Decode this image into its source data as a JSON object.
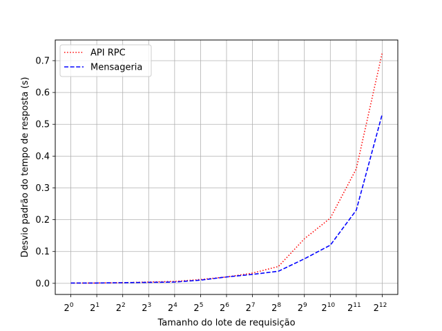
{
  "chart_data": {
    "type": "line",
    "xlabel": "Tamanho do lote de requisição",
    "ylabel": "Desvio padrão do tempo de resposta (s)",
    "x_exponents": [
      0,
      1,
      2,
      3,
      4,
      5,
      6,
      7,
      8,
      9,
      10,
      11,
      12
    ],
    "x_tick_base": "2",
    "y_ticks": [
      "0.0",
      "0.1",
      "0.2",
      "0.3",
      "0.4",
      "0.5",
      "0.6",
      "0.7"
    ],
    "ylim": [
      -0.035,
      0.765
    ],
    "grid": true,
    "legend_position": "upper left",
    "series": [
      {
        "name": "API RPC",
        "color": "#ff0000",
        "style": "dotted",
        "values": [
          0.001,
          0.001,
          0.002,
          0.004,
          0.006,
          0.012,
          0.02,
          0.032,
          0.053,
          0.14,
          0.205,
          0.36,
          0.725
        ]
      },
      {
        "name": "Mensageria",
        "color": "#0000ff",
        "style": "dashed",
        "values": [
          0.001,
          0.001,
          0.002,
          0.003,
          0.004,
          0.01,
          0.02,
          0.028,
          0.038,
          0.077,
          0.12,
          0.23,
          0.532
        ]
      }
    ]
  }
}
